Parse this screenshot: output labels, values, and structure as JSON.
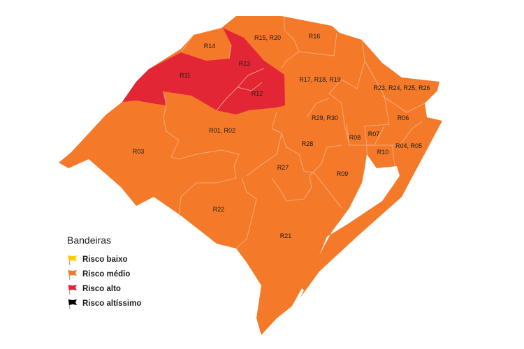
{
  "colors": {
    "medio": "#F47A2A",
    "alto": "#E32636",
    "baixo": "#FFCC00",
    "altissimo": "#000000",
    "water": "#FFFFFF"
  },
  "regions": [
    {
      "label": "R15, R20",
      "risk": "medio"
    },
    {
      "label": "R16",
      "risk": "medio"
    },
    {
      "label": "R14",
      "risk": "medio"
    },
    {
      "label": "R13",
      "risk": "alto"
    },
    {
      "label": "R11",
      "risk": "alto"
    },
    {
      "label": "R17, R18, R19",
      "risk": "medio"
    },
    {
      "label": "R12",
      "risk": "alto"
    },
    {
      "label": "R23, R24, R25, R26",
      "risk": "medio"
    },
    {
      "label": "R29, R30",
      "risk": "medio"
    },
    {
      "label": "R06",
      "risk": "medio"
    },
    {
      "label": "R01, R02",
      "risk": "medio"
    },
    {
      "label": "R03",
      "risk": "medio"
    },
    {
      "label": "R07",
      "risk": "medio"
    },
    {
      "label": "R08",
      "risk": "medio"
    },
    {
      "label": "R28",
      "risk": "medio"
    },
    {
      "label": "R04, R05",
      "risk": "medio"
    },
    {
      "label": "R10",
      "risk": "medio"
    },
    {
      "label": "R27",
      "risk": "medio"
    },
    {
      "label": "R09",
      "risk": "medio"
    },
    {
      "label": "R22",
      "risk": "medio"
    },
    {
      "label": "R21",
      "risk": "medio"
    }
  ],
  "legend": {
    "title": "Bandeiras",
    "items": [
      {
        "label": "Risco baixo",
        "color": "#FFCC00",
        "icon": "yellow-flag-icon"
      },
      {
        "label": "Risco médio",
        "color": "#F47A2A",
        "icon": "orange-flag-icon"
      },
      {
        "label": "Risco alto",
        "color": "#E32636",
        "icon": "red-flag-icon"
      },
      {
        "label": "Risco altíssimo",
        "color": "#000000",
        "icon": "black-flag-icon"
      }
    ]
  }
}
